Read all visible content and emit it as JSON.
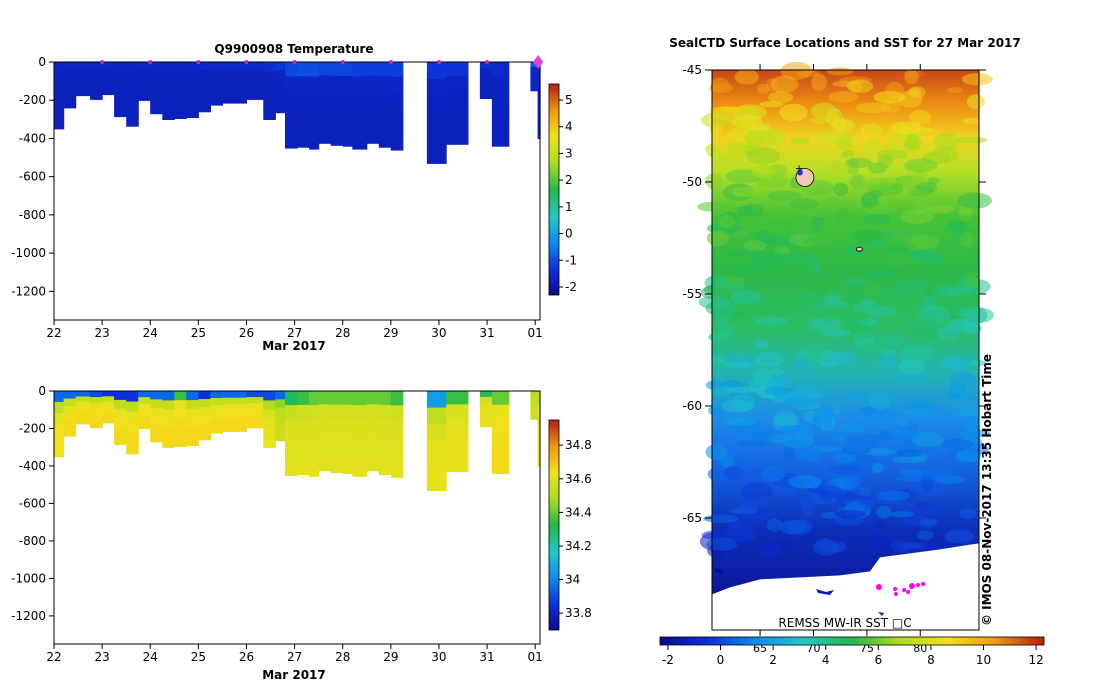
{
  "chart_data": [
    {
      "type": "heatmap",
      "title": "Q9900908  Temperature",
      "xlabel": "Mar 2017",
      "x_ticks": [
        "22",
        "23",
        "24",
        "25",
        "26",
        "27",
        "28",
        "29",
        "30",
        "31",
        "01"
      ],
      "xlim": [
        22,
        32.1
      ],
      "y_ticks": [
        "0",
        "-200",
        "-400",
        "-600",
        "-800",
        "-1000",
        "-1200"
      ],
      "ylim": [
        -1350,
        0
      ],
      "colorbar_ticks": [
        "5",
        "4",
        "3",
        "2",
        "1",
        "0",
        "-1",
        "-2"
      ],
      "colorbar_range": [
        -2.3,
        5.6
      ],
      "profile_markers": [
        23,
        24,
        25,
        26,
        27,
        28,
        29,
        30,
        31
      ],
      "latest_marker": 32,
      "profiles": [
        {
          "x": 22.0,
          "w": 0.2,
          "depth": 350,
          "surface": -1.6,
          "bottom": -1.7
        },
        {
          "x": 22.2,
          "w": 0.25,
          "depth": 240,
          "surface": -1.6,
          "bottom": -1.7
        },
        {
          "x": 22.45,
          "w": 0.3,
          "depth": 175,
          "surface": -1.6,
          "bottom": -1.7
        },
        {
          "x": 22.75,
          "w": 0.25,
          "depth": 195,
          "surface": -1.6,
          "bottom": -1.7
        },
        {
          "x": 23.0,
          "w": 0.25,
          "depth": 170,
          "surface": -1.6,
          "bottom": -1.7
        },
        {
          "x": 23.25,
          "w": 0.25,
          "depth": 285,
          "surface": -1.6,
          "bottom": -1.7
        },
        {
          "x": 23.5,
          "w": 0.25,
          "depth": 335,
          "surface": -1.6,
          "bottom": -1.7
        },
        {
          "x": 23.75,
          "w": 0.25,
          "depth": 200,
          "surface": -1.6,
          "bottom": -1.7
        },
        {
          "x": 24.0,
          "w": 0.25,
          "depth": 270,
          "surface": -1.6,
          "bottom": -1.7
        },
        {
          "x": 24.25,
          "w": 0.25,
          "depth": 300,
          "surface": -1.6,
          "bottom": -1.7
        },
        {
          "x": 24.5,
          "w": 0.25,
          "depth": 295,
          "surface": -1.6,
          "bottom": -1.7
        },
        {
          "x": 24.75,
          "w": 0.25,
          "depth": 290,
          "surface": -1.6,
          "bottom": -1.7
        },
        {
          "x": 25.0,
          "w": 0.25,
          "depth": 260,
          "surface": -1.5,
          "bottom": -1.7
        },
        {
          "x": 25.25,
          "w": 0.25,
          "depth": 225,
          "surface": -1.5,
          "bottom": -1.7
        },
        {
          "x": 25.5,
          "w": 0.25,
          "depth": 215,
          "surface": -1.5,
          "bottom": -1.7
        },
        {
          "x": 25.75,
          "w": 0.25,
          "depth": 215,
          "surface": -1.5,
          "bottom": -1.7
        },
        {
          "x": 26.0,
          "w": 0.35,
          "depth": 195,
          "surface": -1.5,
          "bottom": -1.7
        },
        {
          "x": 26.35,
          "w": 0.25,
          "depth": 300,
          "surface": -1.4,
          "bottom": -1.7
        },
        {
          "x": 26.6,
          "w": 0.2,
          "depth": 265,
          "surface": -1.3,
          "bottom": -1.7
        },
        {
          "x": 26.8,
          "w": 0.25,
          "depth": 450,
          "surface": -1.1,
          "bottom": -1.7
        },
        {
          "x": 27.05,
          "w": 0.25,
          "depth": 445,
          "surface": -1.0,
          "bottom": -1.7
        },
        {
          "x": 27.3,
          "w": 0.2,
          "depth": 455,
          "surface": -1.0,
          "bottom": -1.7
        },
        {
          "x": 27.5,
          "w": 0.25,
          "depth": 425,
          "surface": -1.1,
          "bottom": -1.7
        },
        {
          "x": 27.75,
          "w": 0.25,
          "depth": 435,
          "surface": -1.1,
          "bottom": -1.7
        },
        {
          "x": 28.0,
          "w": 0.2,
          "depth": 440,
          "surface": -1.1,
          "bottom": -1.7
        },
        {
          "x": 28.2,
          "w": 0.3,
          "depth": 455,
          "surface": -1.2,
          "bottom": -1.7
        },
        {
          "x": 28.5,
          "w": 0.25,
          "depth": 425,
          "surface": -1.2,
          "bottom": -1.7
        },
        {
          "x": 28.75,
          "w": 0.25,
          "depth": 445,
          "surface": -1.2,
          "bottom": -1.7
        },
        {
          "x": 29.0,
          "w": 0.25,
          "depth": 460,
          "surface": -1.2,
          "bottom": -1.7
        },
        {
          "x": 29.25,
          "w": 0.5,
          "depth": 0,
          "surface": 0,
          "bottom": 0
        },
        {
          "x": 29.75,
          "w": 0.4,
          "depth": 530,
          "surface": -1.3,
          "bottom": -1.7
        },
        {
          "x": 30.15,
          "w": 0.45,
          "depth": 430,
          "surface": -1.3,
          "bottom": -1.7
        },
        {
          "x": 30.6,
          "w": 0.25,
          "depth": 0,
          "surface": 0,
          "bottom": 0
        },
        {
          "x": 30.85,
          "w": 0.25,
          "depth": 190,
          "surface": -1.4,
          "bottom": -1.7
        },
        {
          "x": 31.1,
          "w": 0.35,
          "depth": 440,
          "surface": -1.5,
          "bottom": -1.7
        },
        {
          "x": 31.9,
          "w": 0.15,
          "depth": 150,
          "surface": -0.8,
          "bottom": -1.6
        },
        {
          "x": 32.05,
          "w": 0.05,
          "depth": 400,
          "surface": -1.6,
          "bottom": -1.7
        }
      ]
    },
    {
      "type": "heatmap",
      "title": "",
      "xlabel": "Mar 2017",
      "x_ticks": [
        "22",
        "23",
        "24",
        "25",
        "26",
        "27",
        "28",
        "29",
        "30",
        "31",
        "01"
      ],
      "xlim": [
        22,
        32.1
      ],
      "y_ticks": [
        "0",
        "-200",
        "-400",
        "-600",
        "-800",
        "-1000",
        "-1200"
      ],
      "ylim": [
        -1350,
        0
      ],
      "colorbar_ticks": [
        "34.8",
        "34.6",
        "34.4",
        "34.2",
        "34",
        "33.8"
      ],
      "colorbar_range": [
        33.7,
        34.95
      ],
      "profiles": [
        {
          "x": 22.0,
          "w": 0.2,
          "depth": 350,
          "surface": 33.95,
          "bottom": 34.64
        },
        {
          "x": 22.2,
          "w": 0.25,
          "depth": 240,
          "surface": 33.95,
          "bottom": 34.66
        },
        {
          "x": 22.45,
          "w": 0.3,
          "depth": 175,
          "surface": 33.95,
          "bottom": 34.66
        },
        {
          "x": 22.75,
          "w": 0.25,
          "depth": 195,
          "surface": 33.9,
          "bottom": 34.66
        },
        {
          "x": 23.0,
          "w": 0.25,
          "depth": 170,
          "surface": 33.85,
          "bottom": 34.66
        },
        {
          "x": 23.25,
          "w": 0.25,
          "depth": 285,
          "surface": 33.85,
          "bottom": 34.66
        },
        {
          "x": 23.5,
          "w": 0.25,
          "depth": 335,
          "surface": 33.85,
          "bottom": 34.66
        },
        {
          "x": 23.75,
          "w": 0.25,
          "depth": 200,
          "surface": 33.95,
          "bottom": 34.66
        },
        {
          "x": 24.0,
          "w": 0.25,
          "depth": 270,
          "surface": 33.95,
          "bottom": 34.66
        },
        {
          "x": 24.25,
          "w": 0.25,
          "depth": 300,
          "surface": 33.95,
          "bottom": 34.66
        },
        {
          "x": 24.5,
          "w": 0.25,
          "depth": 295,
          "surface": 34.35,
          "bottom": 34.66
        },
        {
          "x": 24.75,
          "w": 0.25,
          "depth": 290,
          "surface": 33.95,
          "bottom": 34.66
        },
        {
          "x": 25.0,
          "w": 0.25,
          "depth": 260,
          "surface": 33.85,
          "bottom": 34.66
        },
        {
          "x": 25.25,
          "w": 0.25,
          "depth": 225,
          "surface": 33.95,
          "bottom": 34.66
        },
        {
          "x": 25.5,
          "w": 0.25,
          "depth": 215,
          "surface": 33.95,
          "bottom": 34.66
        },
        {
          "x": 25.75,
          "w": 0.25,
          "depth": 215,
          "surface": 33.95,
          "bottom": 34.66
        },
        {
          "x": 26.0,
          "w": 0.35,
          "depth": 195,
          "surface": 33.9,
          "bottom": 34.66
        },
        {
          "x": 26.35,
          "w": 0.25,
          "depth": 300,
          "surface": 33.9,
          "bottom": 34.62
        },
        {
          "x": 26.6,
          "w": 0.2,
          "depth": 265,
          "surface": 33.95,
          "bottom": 34.55
        },
        {
          "x": 26.8,
          "w": 0.25,
          "depth": 450,
          "surface": 34.3,
          "bottom": 34.6
        },
        {
          "x": 27.05,
          "w": 0.25,
          "depth": 445,
          "surface": 34.35,
          "bottom": 34.6
        },
        {
          "x": 27.3,
          "w": 0.2,
          "depth": 455,
          "surface": 34.4,
          "bottom": 34.6
        },
        {
          "x": 27.5,
          "w": 0.25,
          "depth": 425,
          "surface": 34.4,
          "bottom": 34.6
        },
        {
          "x": 27.75,
          "w": 0.25,
          "depth": 435,
          "surface": 34.4,
          "bottom": 34.6
        },
        {
          "x": 28.0,
          "w": 0.2,
          "depth": 440,
          "surface": 34.4,
          "bottom": 34.6
        },
        {
          "x": 28.2,
          "w": 0.3,
          "depth": 455,
          "surface": 34.4,
          "bottom": 34.6
        },
        {
          "x": 28.5,
          "w": 0.25,
          "depth": 425,
          "surface": 34.4,
          "bottom": 34.6
        },
        {
          "x": 28.75,
          "w": 0.25,
          "depth": 445,
          "surface": 34.4,
          "bottom": 34.6
        },
        {
          "x": 29.0,
          "w": 0.25,
          "depth": 460,
          "surface": 34.35,
          "bottom": 34.6
        },
        {
          "x": 29.25,
          "w": 0.5,
          "depth": 0,
          "surface": 0,
          "bottom": 0
        },
        {
          "x": 29.75,
          "w": 0.4,
          "depth": 530,
          "surface": 34.05,
          "bottom": 34.62
        },
        {
          "x": 30.15,
          "w": 0.45,
          "depth": 430,
          "surface": 34.35,
          "bottom": 34.62
        },
        {
          "x": 30.6,
          "w": 0.25,
          "depth": 0,
          "surface": 0,
          "bottom": 0
        },
        {
          "x": 30.85,
          "w": 0.25,
          "depth": 190,
          "surface": 34.3,
          "bottom": 34.62
        },
        {
          "x": 31.1,
          "w": 0.35,
          "depth": 440,
          "surface": 34.4,
          "bottom": 34.66
        },
        {
          "x": 31.9,
          "w": 0.15,
          "depth": 150,
          "surface": 34.5,
          "bottom": 34.55
        },
        {
          "x": 32.05,
          "w": 0.05,
          "depth": 400,
          "surface": 34.5,
          "bottom": 34.62
        }
      ]
    },
    {
      "type": "heatmap",
      "title": "SealCTD Surface Locations and SST for 27 Mar 2017",
      "y_ticks": [
        "-45",
        "-50",
        "-55",
        "-60",
        "-65"
      ],
      "ylim": [
        -70,
        -45
      ],
      "x_ticks": [
        "65",
        "70",
        "75",
        "80"
      ],
      "xlim": [
        60.5,
        85.5
      ],
      "colorbar_ticks": [
        "-2",
        "0",
        "2",
        "4",
        "6",
        "8",
        "10",
        "12"
      ],
      "colorbar_range": [
        -2.3,
        12.3
      ],
      "sst_bands": [
        {
          "lat": -45,
          "sst": 10.5
        },
        {
          "lat": -46.5,
          "sst": 9.0
        },
        {
          "lat": -48,
          "sst": 7.5
        },
        {
          "lat": -49.5,
          "sst": 6.3
        },
        {
          "lat": -51,
          "sst": 5.8
        },
        {
          "lat": -53,
          "sst": 5.0
        },
        {
          "lat": -55,
          "sst": 4.6
        },
        {
          "lat": -57,
          "sst": 3.8
        },
        {
          "lat": -59,
          "sst": 2.5
        },
        {
          "lat": -61,
          "sst": 1.5
        },
        {
          "lat": -63,
          "sst": 0.8
        },
        {
          "lat": -65,
          "sst": 0.0
        },
        {
          "lat": -67,
          "sst": -1.0
        },
        {
          "lat": -70,
          "sst": -1.8
        }
      ],
      "ice_edge_lat": -66.4,
      "seal_locations": [
        {
          "lon": 69.2,
          "lat": -49.8
        },
        {
          "lon": 74.3,
          "lat": -53.0
        }
      ],
      "footer_left": "REMSS MW-IR SST □C",
      "footer_right": "© IMOS 08-Nov-2017 13:35 Hobart Time"
    }
  ]
}
